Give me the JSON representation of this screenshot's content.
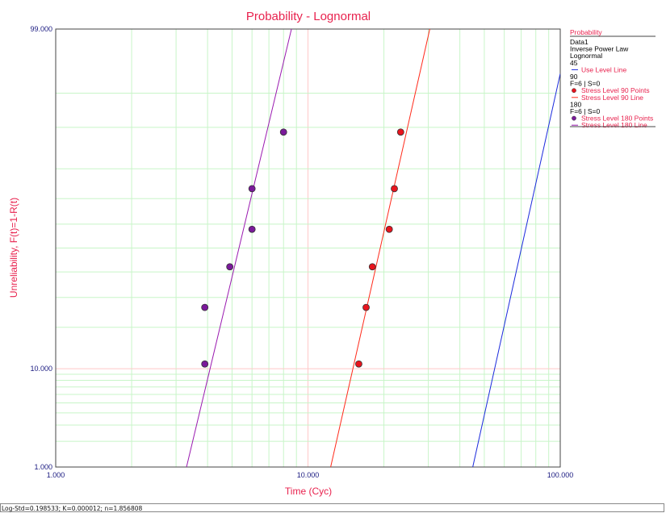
{
  "chart_data": {
    "type": "scatter",
    "title": "Probability - Lognormal",
    "xlabel": "Time (Cyc)",
    "ylabel": "Unreliability, F(t)=1-R(t)",
    "x_scale": "log",
    "y_scale": "lognormal-probability",
    "xlim": [
      1,
      100
    ],
    "ylim": [
      1,
      99
    ],
    "x_ticks": [
      "1.000",
      "10.000",
      "100.000"
    ],
    "y_ticks": [
      "1.000",
      "10.000",
      "99.000"
    ],
    "grid": true,
    "legend_position": "right",
    "series": [
      {
        "name": "Stress Level 90 Points",
        "kind": "points",
        "color": "#e8141e",
        "x": [
          15.9,
          17.0,
          18.0,
          21.0,
          22.0,
          23.3
        ],
        "y": [
          10.9,
          26.4,
          42.1,
          57.9,
          73.6,
          89.1
        ]
      },
      {
        "name": "Stress Level 90 Line",
        "kind": "line",
        "color": "#ff2a1a",
        "x": [
          12.3,
          30.4
        ],
        "y": [
          1,
          99
        ]
      },
      {
        "name": "Stress Level 180 Points",
        "kind": "points",
        "color": "#7a1a9a",
        "x": [
          3.9,
          3.9,
          4.9,
          6.0,
          6.0,
          8.0
        ],
        "y": [
          10.9,
          26.4,
          42.1,
          57.9,
          73.6,
          89.1
        ]
      },
      {
        "name": "Stress Level 180 Line",
        "kind": "line",
        "color": "#9a1ab0",
        "x": [
          3.3,
          8.6
        ],
        "y": [
          1,
          99
        ]
      },
      {
        "name": "Use Level Line",
        "kind": "line",
        "color": "#1a2adc",
        "x": [
          45.0,
          100.0
        ],
        "y": [
          1,
          96.8
        ]
      }
    ]
  },
  "legend": {
    "title": "Probability",
    "lines": [
      {
        "text": "Data1",
        "color": "#000000"
      },
      {
        "text": "Inverse Power Law",
        "color": "#000000"
      },
      {
        "text": "Lognormal",
        "color": "#000000"
      },
      {
        "text": "45",
        "color": "#000000"
      },
      {
        "text": "Use Level Line",
        "color": "#e8224e",
        "marker": "line",
        "marker_color": "#1a2adc"
      },
      {
        "text": "90",
        "color": "#000000"
      },
      {
        "text": "F=6 | S=0",
        "color": "#000000"
      },
      {
        "text": "Stress Level 90 Points",
        "color": "#e8224e",
        "marker": "dot",
        "marker_color": "#e8141e"
      },
      {
        "text": "Stress Level 90 Line",
        "color": "#e8224e",
        "marker": "line",
        "marker_color": "#ff2a1a"
      },
      {
        "text": "180",
        "color": "#000000"
      },
      {
        "text": "F=6 | S=0",
        "color": "#000000"
      },
      {
        "text": "Stress Level 180 Points",
        "color": "#e8224e",
        "marker": "dot",
        "marker_color": "#7a1a9a"
      },
      {
        "text": "Stress Level 180 Line",
        "color": "#e8224e",
        "marker": "line",
        "marker_color": "#9a1ab0"
      }
    ]
  },
  "status_bar": {
    "text": "Log-Std=0.198533; K=0.000012; n=1.856808"
  },
  "colors": {
    "minor_grid": "#c8f5c8",
    "major_grid": "#ffc8c8",
    "axis": "#444444"
  }
}
